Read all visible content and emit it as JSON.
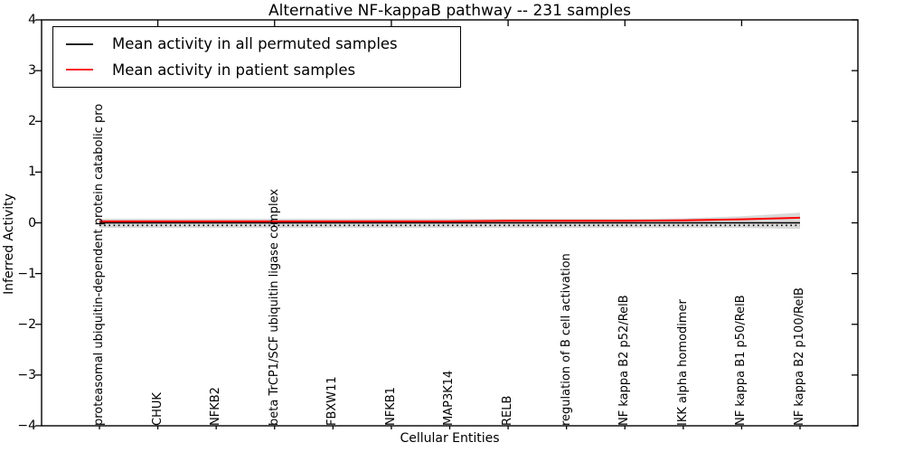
{
  "chart_data": {
    "type": "line",
    "title": "Alternative NF-kappaB pathway -- 231 samples",
    "xlabel": "Cellular Entities",
    "ylabel": "Inferred Activity",
    "ylim": [
      -4,
      4
    ],
    "yticks": [
      4,
      3,
      2,
      1,
      0,
      -1,
      -2,
      -3,
      -4
    ],
    "grid": false,
    "legend_position": "upper left",
    "categories": [
      "proteasomal ubiquitin-dependent protein catabolic pro",
      "CHUK",
      "NFKB2",
      "beta TrCP1/SCF ubiquitin ligase complex",
      "FBXW11",
      "NFKB1",
      "MAP3K14",
      "RELB",
      "regulation of B cell activation",
      "NF kappa B2 p52/RelB",
      "IKK alpha homodimer",
      "NF kappa B1 p50/RelB",
      "NF kappa B2 p100/RelB"
    ],
    "series": [
      {
        "name": "Mean activity in all permuted samples",
        "color": "#000000",
        "style": "solid",
        "values": [
          0.0,
          0.0,
          0.0,
          0.0,
          0.0,
          0.0,
          0.0,
          0.0,
          0.0,
          0.0,
          0.0,
          0.0,
          0.0
        ]
      },
      {
        "name": "Mean activity in patient samples",
        "color": "#ff0000",
        "style": "solid",
        "values": [
          0.03,
          0.03,
          0.03,
          0.03,
          0.03,
          0.03,
          0.03,
          0.04,
          0.04,
          0.04,
          0.05,
          0.07,
          0.1
        ]
      }
    ],
    "band": {
      "color": "#d9d9d9",
      "upper": [
        0.08,
        0.08,
        0.08,
        0.08,
        0.08,
        0.08,
        0.08,
        0.08,
        0.08,
        0.08,
        0.09,
        0.13,
        0.2
      ],
      "lower": [
        -0.1,
        -0.1,
        -0.1,
        -0.1,
        -0.1,
        -0.1,
        -0.1,
        -0.1,
        -0.1,
        -0.1,
        -0.1,
        -0.1,
        -0.12
      ]
    },
    "marker_row": {
      "y": -0.05,
      "color": "#000000",
      "style": "dotted"
    }
  },
  "legend": {
    "entries": [
      {
        "label": "Mean activity in all permuted samples",
        "color": "#000000"
      },
      {
        "label": "Mean activity in patient samples",
        "color": "#ff0000"
      }
    ]
  }
}
